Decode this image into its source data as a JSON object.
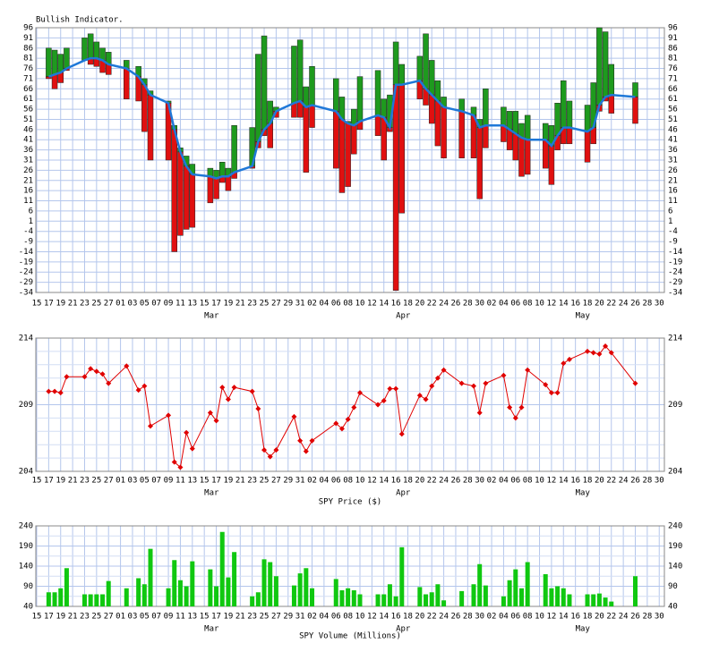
{
  "chart_data": [
    {
      "type": "range",
      "title": "Bullish Indicator.",
      "xticks": [
        "15",
        "17",
        "19",
        "21",
        "23",
        "25",
        "27",
        "01",
        "03",
        "05",
        "07",
        "09",
        "11",
        "13",
        "15",
        "17",
        "19",
        "21",
        "23",
        "25",
        "27",
        "29",
        "31",
        "02",
        "04",
        "06",
        "08",
        "10",
        "12",
        "14",
        "16",
        "18",
        "20",
        "22",
        "24",
        "26",
        "28",
        "30",
        "02",
        "04",
        "06",
        "08",
        "10",
        "12",
        "14",
        "16",
        "18",
        "20",
        "22",
        "24",
        "26",
        "28",
        "30"
      ],
      "month_labels": [
        "Mar",
        "Apr",
        "May"
      ],
      "x": [
        "17",
        "18",
        "19",
        "20",
        "23",
        "24",
        "25",
        "26",
        "27",
        "02",
        "04",
        "05",
        "06",
        "09",
        "10",
        "11",
        "12",
        "13",
        "16",
        "17",
        "18",
        "19",
        "20",
        "23",
        "24",
        "25",
        "26",
        "27",
        "30",
        "31",
        "01",
        "02",
        "06",
        "07",
        "08",
        "09",
        "10",
        "13",
        "14",
        "15",
        "16",
        "17",
        "20",
        "21",
        "22",
        "23",
        "24",
        "27",
        "29",
        "30",
        "01",
        "04",
        "05",
        "06",
        "07",
        "08",
        "11",
        "12",
        "13",
        "14",
        "15",
        "18",
        "19",
        "20",
        "21",
        "22",
        "26"
      ],
      "high": [
        86,
        85,
        83,
        86,
        91,
        93,
        89,
        86,
        84,
        80,
        77,
        71,
        65,
        60,
        48,
        37,
        33,
        29,
        27,
        26,
        30,
        27,
        48,
        47,
        83,
        92,
        60,
        57,
        87,
        90,
        67,
        77,
        71,
        62,
        50,
        56,
        72,
        75,
        61,
        63,
        89,
        78,
        82,
        93,
        80,
        70,
        62,
        61,
        57,
        51,
        66,
        57,
        55,
        55,
        49,
        53,
        49,
        48,
        59,
        70,
        60,
        58,
        69,
        96,
        94,
        78,
        69
      ],
      "low": [
        71,
        66,
        69,
        75,
        80,
        78,
        77,
        74,
        73,
        61,
        60,
        45,
        31,
        31,
        -14,
        -6,
        -3,
        -2,
        10,
        12,
        20,
        16,
        22,
        27,
        37,
        43,
        37,
        52,
        52,
        52,
        25,
        47,
        27,
        15,
        18,
        34,
        46,
        43,
        31,
        45,
        -33,
        5,
        61,
        58,
        49,
        38,
        32,
        32,
        32,
        12,
        37,
        40,
        36,
        31,
        23,
        24,
        27,
        19,
        36,
        39,
        39,
        30,
        39,
        55,
        60,
        54,
        49
      ],
      "values": [
        72,
        73,
        74,
        76,
        80,
        81,
        81,
        80,
        78,
        76,
        72,
        68,
        63,
        59,
        46,
        35,
        28,
        24,
        23,
        22,
        23,
        23,
        25,
        28,
        40,
        46,
        49,
        55,
        59,
        60,
        57,
        58,
        55,
        51,
        49,
        48,
        50,
        53,
        52,
        47,
        68,
        68,
        70,
        66,
        63,
        60,
        57,
        55,
        53,
        47,
        48,
        48,
        46,
        44,
        42,
        41,
        41,
        38,
        43,
        47,
        47,
        45,
        47,
        58,
        62,
        63,
        62
      ],
      "up_color": "#1e9a1e",
      "down_color": "#e01010",
      "line_color": "#1f78d8",
      "ylim": [
        -34,
        96
      ],
      "yticks": [
        96,
        91,
        86,
        81,
        76,
        71,
        66,
        61,
        56,
        51,
        46,
        41,
        36,
        31,
        26,
        21,
        16,
        11,
        6,
        1,
        -4,
        -9,
        -14,
        -19,
        -24,
        -29,
        -34
      ],
      "grid": true
    },
    {
      "type": "line",
      "title": "SPY Price ($)",
      "xticks": [
        "15",
        "17",
        "19",
        "21",
        "23",
        "25",
        "27",
        "01",
        "03",
        "05",
        "07",
        "09",
        "11",
        "13",
        "15",
        "17",
        "19",
        "21",
        "23",
        "25",
        "27",
        "29",
        "31",
        "02",
        "04",
        "06",
        "08",
        "10",
        "12",
        "14",
        "16",
        "18",
        "20",
        "22",
        "24",
        "26",
        "28",
        "30",
        "02",
        "04",
        "06",
        "08",
        "10",
        "12",
        "14",
        "16",
        "18",
        "20",
        "22",
        "24",
        "26",
        "28",
        "30"
      ],
      "month_labels": [
        "Mar",
        "Apr",
        "May"
      ],
      "x": [
        "17",
        "18",
        "19",
        "20",
        "23",
        "24",
        "25",
        "26",
        "27",
        "02",
        "04",
        "05",
        "06",
        "09",
        "10",
        "11",
        "12",
        "13",
        "16",
        "17",
        "18",
        "19",
        "20",
        "23",
        "24",
        "25",
        "26",
        "27",
        "30",
        "31",
        "01",
        "02",
        "06",
        "07",
        "08",
        "09",
        "10",
        "13",
        "14",
        "15",
        "16",
        "17",
        "20",
        "21",
        "22",
        "23",
        "24",
        "27",
        "29",
        "30",
        "01",
        "04",
        "05",
        "06",
        "07",
        "08",
        "11",
        "12",
        "13",
        "14",
        "15",
        "18",
        "19",
        "20",
        "21",
        "22",
        "26"
      ],
      "values": [
        210.0,
        210.0,
        209.9,
        211.1,
        211.1,
        211.7,
        211.5,
        211.3,
        210.6,
        211.9,
        210.1,
        210.4,
        207.4,
        208.2,
        204.7,
        204.3,
        206.9,
        205.7,
        208.4,
        207.8,
        210.3,
        209.4,
        210.3,
        210.0,
        208.7,
        205.6,
        205.1,
        205.6,
        208.1,
        206.3,
        205.5,
        206.3,
        207.6,
        207.2,
        207.9,
        208.8,
        209.9,
        209.0,
        209.3,
        210.2,
        210.2,
        206.8,
        209.7,
        209.4,
        210.4,
        211.0,
        211.6,
        210.6,
        210.4,
        208.4,
        210.6,
        211.2,
        208.8,
        208.0,
        208.8,
        211.6,
        210.5,
        209.9,
        209.9,
        212.1,
        212.4,
        213.0,
        212.9,
        212.8,
        213.4,
        212.9,
        210.6
      ],
      "color": "#e00000",
      "ylim": [
        204,
        214
      ],
      "yticks": [
        204,
        209,
        214
      ],
      "minor_yticks": [
        205,
        206,
        207,
        208,
        210,
        211,
        212,
        213
      ],
      "grid": true
    },
    {
      "type": "bar",
      "title": "SPY Volume (Millions)",
      "xticks": [
        "15",
        "17",
        "19",
        "21",
        "23",
        "25",
        "27",
        "01",
        "03",
        "05",
        "07",
        "09",
        "11",
        "13",
        "15",
        "17",
        "19",
        "21",
        "23",
        "25",
        "27",
        "29",
        "31",
        "02",
        "04",
        "06",
        "08",
        "10",
        "12",
        "14",
        "16",
        "18",
        "20",
        "22",
        "24",
        "26",
        "28",
        "30",
        "02",
        "04",
        "06",
        "08",
        "10",
        "12",
        "14",
        "16",
        "18",
        "20",
        "22",
        "24",
        "26",
        "28",
        "30"
      ],
      "month_labels": [
        "Mar",
        "Apr",
        "May"
      ],
      "x": [
        "17",
        "18",
        "19",
        "20",
        "23",
        "24",
        "25",
        "26",
        "27",
        "02",
        "04",
        "05",
        "06",
        "09",
        "10",
        "11",
        "12",
        "13",
        "16",
        "17",
        "18",
        "19",
        "20",
        "23",
        "24",
        "25",
        "26",
        "27",
        "30",
        "31",
        "01",
        "02",
        "06",
        "07",
        "08",
        "09",
        "10",
        "13",
        "14",
        "15",
        "16",
        "17",
        "20",
        "21",
        "22",
        "23",
        "24",
        "27",
        "29",
        "30",
        "01",
        "04",
        "05",
        "06",
        "07",
        "08",
        "11",
        "12",
        "13",
        "14",
        "15",
        "18",
        "19",
        "20",
        "21",
        "22",
        "26"
      ],
      "values": [
        75,
        75,
        85,
        135,
        70,
        70,
        70,
        70,
        103,
        85,
        110,
        95,
        183,
        85,
        155,
        105,
        90,
        152,
        132,
        90,
        225,
        112,
        175,
        65,
        75,
        157,
        150,
        115,
        92,
        122,
        135,
        85,
        108,
        80,
        85,
        80,
        70,
        70,
        70,
        95,
        65,
        187,
        88,
        70,
        75,
        95,
        55,
        78,
        95,
        145,
        92,
        65,
        105,
        132,
        85,
        150,
        120,
        85,
        90,
        85,
        70,
        70,
        70,
        72,
        62,
        52,
        115
      ],
      "color": "#10c810",
      "ylim": [
        40,
        240
      ],
      "yticks": [
        40,
        90,
        140,
        190,
        240
      ],
      "minor_yticks": [
        65,
        115,
        165,
        215
      ],
      "grid": true
    }
  ]
}
